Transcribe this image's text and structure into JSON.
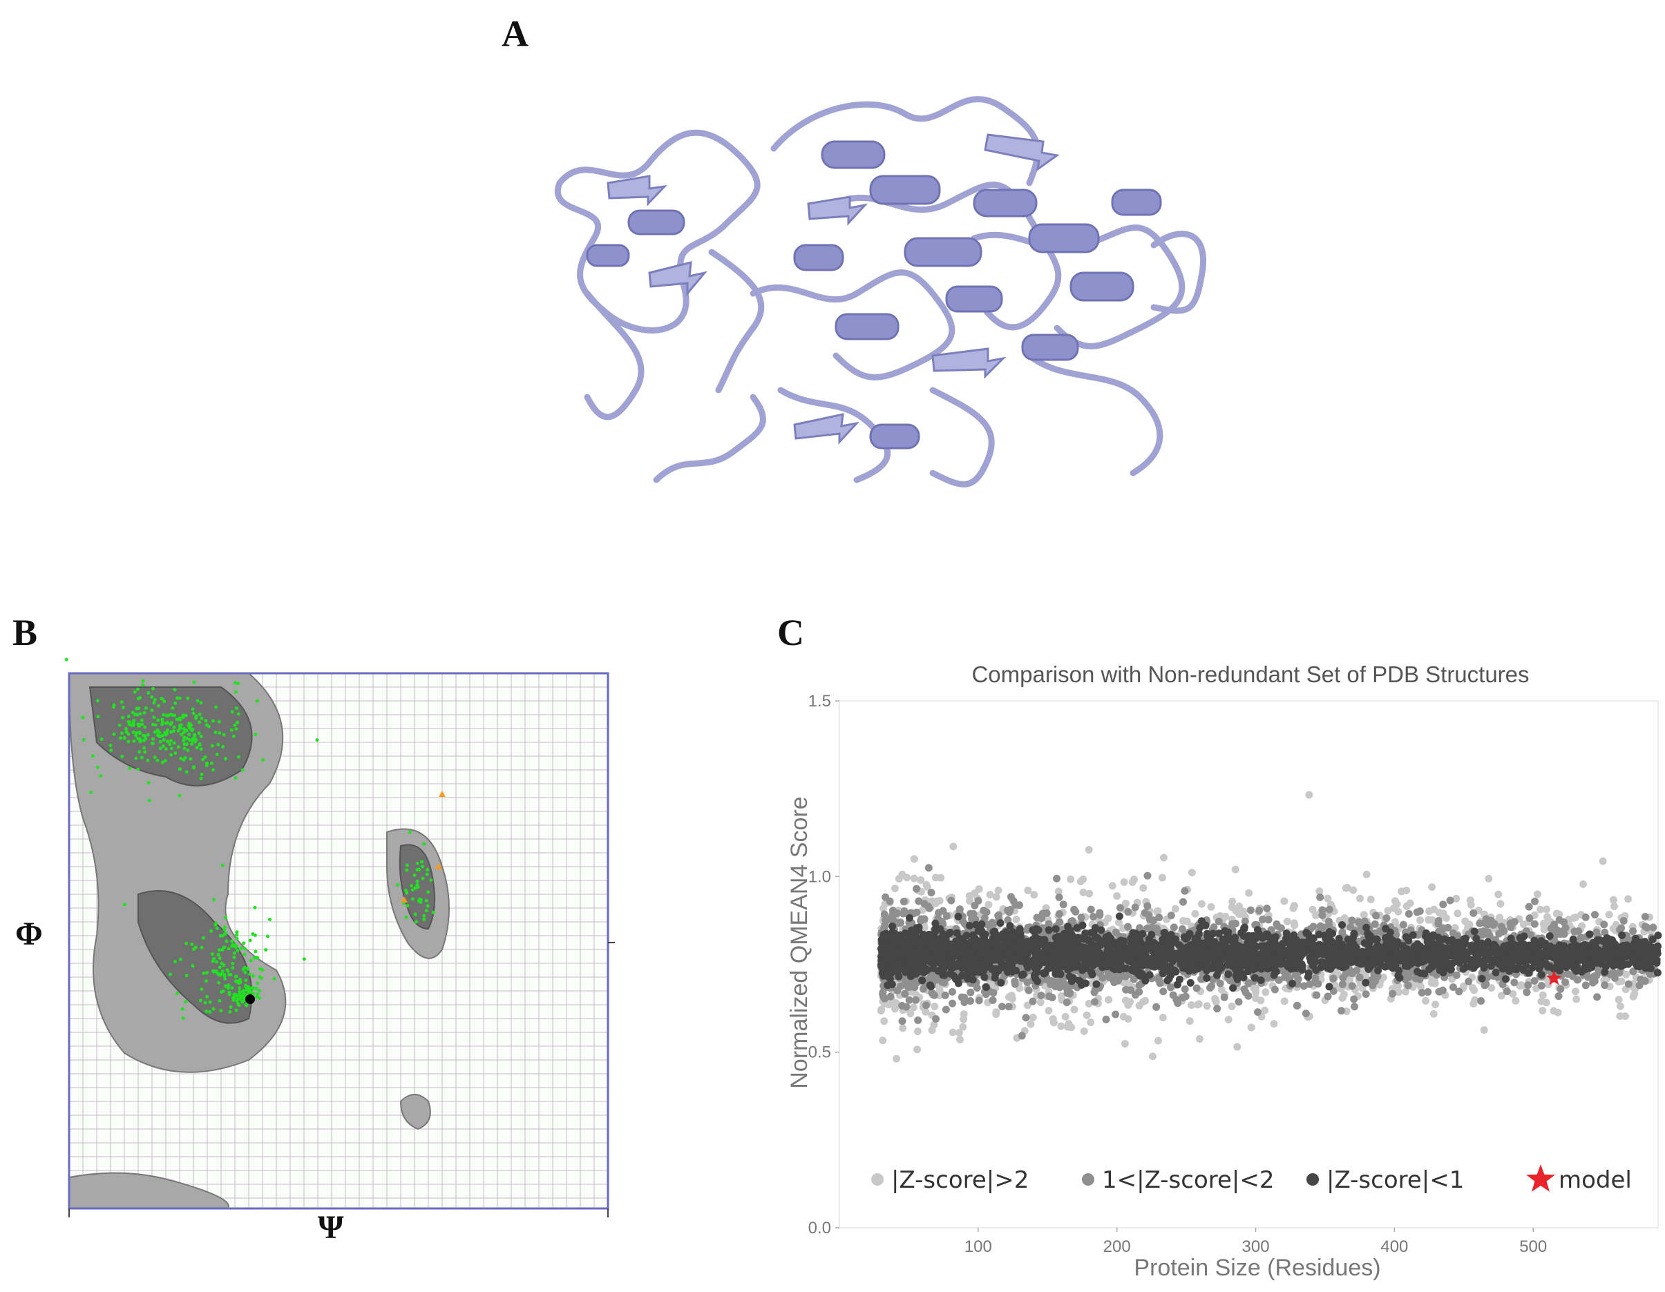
{
  "figure": {
    "panel_labels": [
      "A",
      "B",
      "C"
    ]
  },
  "panel_b": {
    "x_label": "Ψ",
    "y_label": "Φ",
    "colors": {
      "favored": "#22e022",
      "outlier": "#f59a23",
      "gly": "#000000",
      "frame": "#6a6ac0"
    }
  },
  "chart_data": {
    "type": "scatter",
    "title": "Comparison with Non-redundant Set of PDB Structures",
    "xlabel": "Protein Size (Residues)",
    "ylabel": "Normalized QMEAN4 Score",
    "xlim": [
      0,
      590
    ],
    "ylim": [
      0.0,
      1.5
    ],
    "xticks": [
      100,
      200,
      300,
      400,
      500
    ],
    "yticks": [
      0.0,
      0.5,
      1.0,
      1.5
    ],
    "grid": false,
    "legend_position": "bottom",
    "series": [
      {
        "name": "|Z-score|>2",
        "color": "#c8c8c8",
        "x_range": [
          30,
          590
        ],
        "y_center": 0.78,
        "y_spread": 0.12
      },
      {
        "name": "1<|Z-score|<2",
        "color": "#8f8f8f",
        "x_range": [
          30,
          590
        ],
        "y_center": 0.78,
        "y_spread": 0.07
      },
      {
        "name": "|Z-score|<1",
        "color": "#454545",
        "x_range": [
          30,
          590
        ],
        "y_center": 0.78,
        "y_spread": 0.035
      }
    ],
    "model": {
      "name": "model",
      "x": 515,
      "y": 0.71,
      "color": "#e8242a"
    }
  }
}
